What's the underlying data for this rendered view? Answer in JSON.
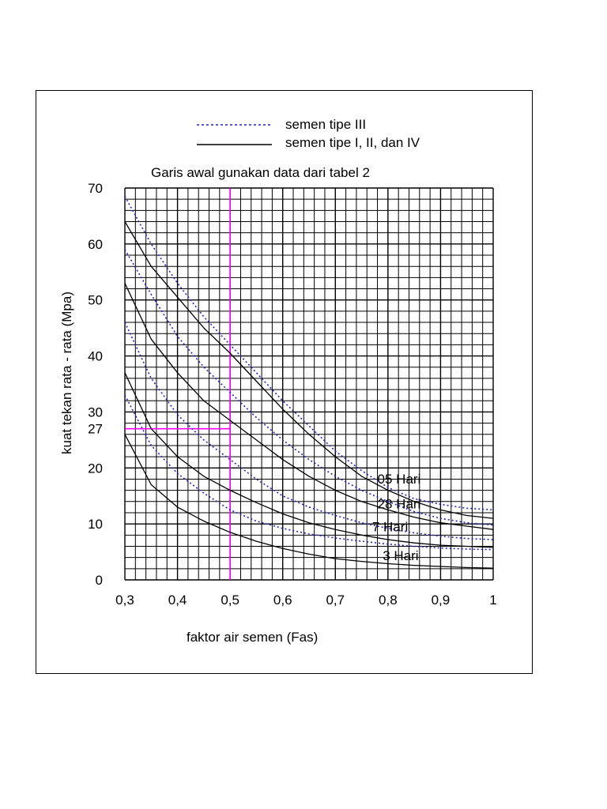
{
  "chart_data": {
    "type": "line",
    "title": "Garis awal gunakan data dari tabel 2",
    "xlabel": "faktor air semen (Fas)",
    "ylabel": "kuat tekan rata - rata (Mpa)",
    "xlim": [
      0.3,
      1.0
    ],
    "ylim": [
      0,
      70
    ],
    "x_ticks": [
      {
        "value": 0.3,
        "label": "0,3"
      },
      {
        "value": 0.4,
        "label": "0,4"
      },
      {
        "value": 0.5,
        "label": "0,5"
      },
      {
        "value": 0.6,
        "label": "0,6"
      },
      {
        "value": 0.7,
        "label": "0,7"
      },
      {
        "value": 0.8,
        "label": "0,8"
      },
      {
        "value": 0.9,
        "label": "0,9"
      },
      {
        "value": 1.0,
        "label": "1"
      }
    ],
    "y_ticks": [
      {
        "value": 0,
        "label": "0"
      },
      {
        "value": 10,
        "label": "10"
      },
      {
        "value": 20,
        "label": "20"
      },
      {
        "value": 27,
        "label": "27"
      },
      {
        "value": 30,
        "label": "30"
      },
      {
        "value": 40,
        "label": "40"
      },
      {
        "value": 50,
        "label": "50"
      },
      {
        "value": 60,
        "label": "60"
      },
      {
        "value": 70,
        "label": "70"
      }
    ],
    "grid": true,
    "legend": {
      "placement": "top",
      "entries": [
        {
          "label": "semen tipe III",
          "style": "dotted",
          "color": "#2222cc"
        },
        {
          "label": "semen tipe I, II, dan IV",
          "style": "solid",
          "color": "#000000"
        }
      ]
    },
    "curve_labels": [
      {
        "text": "05 Hari",
        "x": 0.78,
        "y": 17.2
      },
      {
        "text": "28 Hari",
        "x": 0.78,
        "y": 12.8
      },
      {
        "text": "7 Hari",
        "x": 0.77,
        "y": 8.7
      },
      {
        "text": "3 Hari",
        "x": 0.79,
        "y": 3.5
      }
    ],
    "reference_lines": [
      {
        "type": "vertical",
        "x": 0.5,
        "color": "#ff00ff"
      },
      {
        "type": "horizontal",
        "y": 27,
        "x_from": 0.3,
        "x_to": 0.5,
        "color": "#ff00ff"
      }
    ],
    "series": [
      {
        "style": "solid",
        "color": "#000000",
        "x": [
          0.3,
          0.35,
          0.4,
          0.45,
          0.5,
          0.55,
          0.6,
          0.65,
          0.7,
          0.75,
          0.8,
          0.85,
          0.9,
          0.95,
          1.0
        ],
        "y": [
          64,
          56,
          50.5,
          45,
          40.5,
          35.5,
          30.5,
          26,
          22,
          18.5,
          16,
          14,
          12.5,
          11.5,
          11
        ]
      },
      {
        "style": "solid",
        "color": "#000000",
        "x": [
          0.3,
          0.35,
          0.4,
          0.45,
          0.5,
          0.55,
          0.6,
          0.65,
          0.7,
          0.75,
          0.8,
          0.85,
          0.9,
          0.95,
          1.0
        ],
        "y": [
          53,
          43,
          37,
          32,
          28.5,
          25,
          21.5,
          18.5,
          16,
          14,
          12.5,
          11.2,
          10.2,
          9.6,
          9
        ]
      },
      {
        "style": "solid",
        "color": "#000000",
        "x": [
          0.3,
          0.35,
          0.4,
          0.45,
          0.5,
          0.55,
          0.6,
          0.65,
          0.7,
          0.75,
          0.8,
          0.85,
          0.9,
          0.95,
          1.0
        ],
        "y": [
          37,
          27,
          22,
          18.5,
          16,
          13.8,
          11.8,
          10.2,
          9,
          8,
          7.2,
          6.6,
          6.2,
          6,
          5.8
        ]
      },
      {
        "style": "solid",
        "color": "#000000",
        "x": [
          0.3,
          0.35,
          0.4,
          0.45,
          0.5,
          0.55,
          0.6,
          0.65,
          0.7,
          0.75,
          0.8,
          0.85,
          0.9,
          0.95,
          1.0
        ],
        "y": [
          26,
          17,
          13,
          10.5,
          8.5,
          6.9,
          5.6,
          4.6,
          3.8,
          3.3,
          2.9,
          2.6,
          2.4,
          2.2,
          2.1
        ]
      },
      {
        "style": "dotted",
        "color": "#2222cc",
        "x": [
          0.3,
          0.35,
          0.4,
          0.45,
          0.5,
          0.55,
          0.6,
          0.65,
          0.7,
          0.75,
          0.8,
          0.85,
          0.9,
          0.95,
          1.0
        ],
        "y": [
          68.5,
          60,
          53,
          47,
          42,
          37,
          32,
          27.5,
          23,
          19.5,
          16.5,
          14.5,
          13.5,
          12.8,
          12.5
        ]
      },
      {
        "style": "dotted",
        "color": "#2222cc",
        "x": [
          0.3,
          0.35,
          0.4,
          0.45,
          0.5,
          0.55,
          0.6,
          0.65,
          0.7,
          0.75,
          0.8,
          0.85,
          0.9,
          0.95,
          1.0
        ],
        "y": [
          59,
          51,
          43.5,
          38,
          33.5,
          29,
          25,
          21.5,
          18.5,
          16,
          14,
          12.2,
          11,
          10.2,
          9.8
        ]
      },
      {
        "style": "dotted",
        "color": "#2222cc",
        "x": [
          0.3,
          0.35,
          0.4,
          0.45,
          0.5,
          0.55,
          0.6,
          0.65,
          0.7,
          0.75,
          0.8,
          0.85,
          0.9,
          0.95,
          1.0
        ],
        "y": [
          46,
          36,
          29.5,
          25,
          21.5,
          18,
          15,
          13,
          11.5,
          10.2,
          9.2,
          8.4,
          7.8,
          7.4,
          7.2
        ]
      },
      {
        "style": "dotted",
        "color": "#2222cc",
        "x": [
          0.3,
          0.35,
          0.4,
          0.45,
          0.5,
          0.55,
          0.6,
          0.65,
          0.7,
          0.75,
          0.8,
          0.85,
          0.9,
          0.95,
          1.0
        ],
        "y": [
          33,
          24,
          19,
          15.5,
          12.5,
          10.5,
          9.2,
          8.2,
          7.5,
          6.9,
          6.4,
          6,
          5.7,
          5.5,
          5.4
        ]
      }
    ]
  }
}
